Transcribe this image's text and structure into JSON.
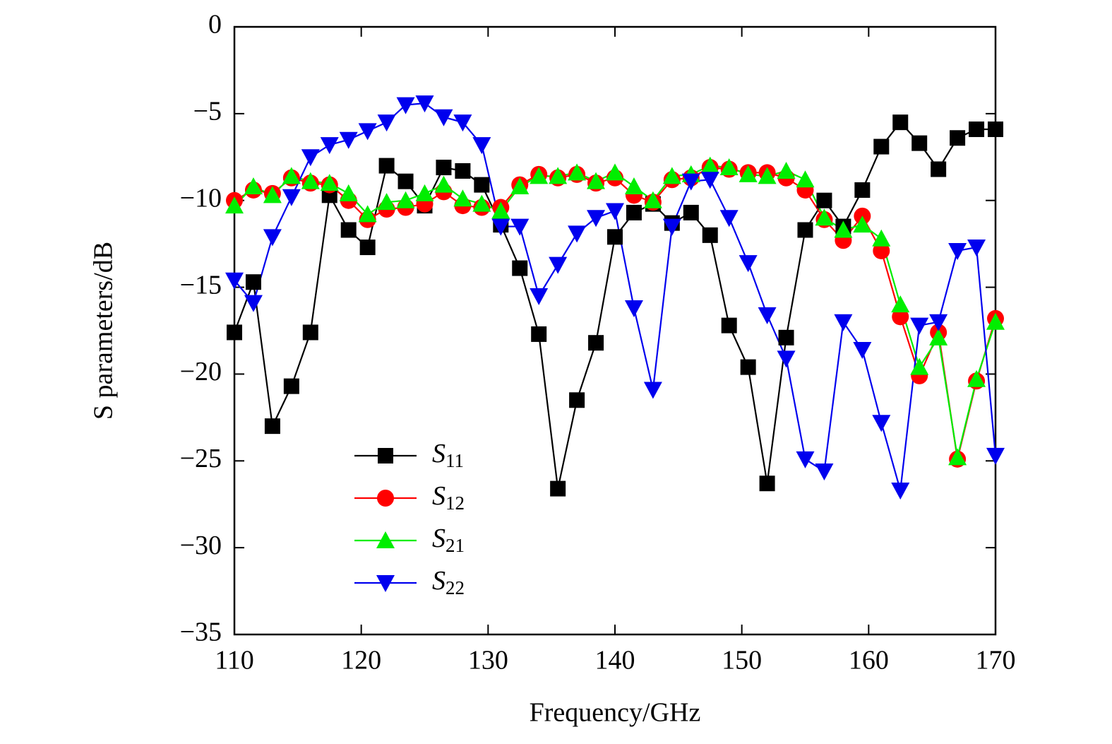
{
  "chart_data": {
    "type": "line",
    "xlabel": "Frequency/GHz",
    "ylabel": "S parameters/dB",
    "xlim": [
      110,
      170
    ],
    "ylim": [
      -35,
      0
    ],
    "xticks": [
      110,
      120,
      130,
      140,
      150,
      160,
      170
    ],
    "yticks": [
      0,
      {
        "value": -5,
        "label": "−5"
      },
      {
        "value": -10,
        "label": "−10"
      },
      {
        "value": -15,
        "label": "−15"
      },
      {
        "value": -20,
        "label": "−20"
      },
      {
        "value": -25,
        "label": "−25"
      },
      {
        "value": -30,
        "label": "−30"
      },
      {
        "value": -35,
        "label": "−35"
      }
    ],
    "legend": "lower left",
    "x": [
      110,
      111.5,
      113,
      114.5,
      116,
      117.5,
      119,
      120.5,
      122,
      123.5,
      125,
      126.5,
      128,
      129.5,
      131,
      132.5,
      134,
      135.5,
      137,
      138.5,
      140,
      141.5,
      143,
      144.5,
      146,
      147.5,
      149,
      150.5,
      152,
      153.5,
      155,
      156.5,
      158,
      159.5,
      161,
      162.5,
      164,
      165.5,
      167,
      168.5,
      170
    ],
    "series": [
      {
        "name": "S11",
        "color": "#000000",
        "marker": "square",
        "values": [
          -17.6,
          -14.7,
          -23,
          -20.7,
          -17.6,
          -9.7,
          -11.7,
          -12.7,
          -8,
          -8.9,
          -10.3,
          -8.1,
          -8.3,
          -9.1,
          -11.4,
          -13.9,
          -17.7,
          -26.6,
          -21.5,
          -18.2,
          -12.1,
          -10.7,
          -10.2,
          -11.3,
          -10.7,
          -12,
          -17.2,
          -19.6,
          -26.3,
          -17.9,
          -11.7,
          -10,
          -11.5,
          -9.4,
          -6.9,
          -5.5,
          -6.7,
          -8.2,
          -6.4,
          -5.9,
          -5.9
        ]
      },
      {
        "name": "S12",
        "color": "#ff0000",
        "marker": "circle",
        "values": [
          -10,
          -9.4,
          -9.6,
          -8.7,
          -9,
          -9.1,
          -10,
          -11.1,
          -10.5,
          -10.4,
          -10.2,
          -9.5,
          -10.3,
          -10.4,
          -10.4,
          -9.1,
          -8.5,
          -8.7,
          -8.5,
          -9,
          -8.7,
          -9.7,
          -10.1,
          -8.8,
          -8.7,
          -8.1,
          -8.2,
          -8.4,
          -8.4,
          -8.7,
          -9.4,
          -11.1,
          -12.3,
          -10.9,
          -12.9,
          -16.7,
          -20.1,
          -17.6,
          -24.9,
          -20.4,
          -16.8
        ]
      },
      {
        "name": "S21",
        "color": "#00ee00",
        "marker": "triangle-up",
        "values": [
          -10.3,
          -9.2,
          -9.7,
          -8.6,
          -8.9,
          -9,
          -9.6,
          -10.8,
          -10.1,
          -10,
          -9.6,
          -9.1,
          -9.9,
          -10.2,
          -10.6,
          -9.2,
          -8.6,
          -8.6,
          -8.4,
          -8.9,
          -8.4,
          -9.2,
          -10,
          -8.6,
          -8.5,
          -8,
          -8.1,
          -8.5,
          -8.6,
          -8.3,
          -8.8,
          -11,
          -11.7,
          -11.4,
          -12.2,
          -16,
          -19.6,
          -17.9,
          -24.8,
          -20.3,
          -17
        ]
      },
      {
        "name": "S22",
        "color": "#0000ee",
        "marker": "triangle-down",
        "values": [
          -14.6,
          -15.9,
          -12.1,
          -9.8,
          -7.5,
          -6.8,
          -6.5,
          -6,
          -5.5,
          -4.5,
          -4.4,
          -5.2,
          -5.5,
          -6.8,
          -11.5,
          -11.5,
          -15.5,
          -13.7,
          -11.9,
          -11,
          -10.6,
          -16.2,
          -20.9,
          -11.5,
          -8.9,
          -8.8,
          -11,
          -13.6,
          -16.6,
          -19.1,
          -24.9,
          -25.6,
          -17,
          -18.6,
          -22.8,
          -26.7,
          -17.2,
          -17,
          -12.9,
          -12.7,
          -24.7
        ]
      }
    ]
  }
}
